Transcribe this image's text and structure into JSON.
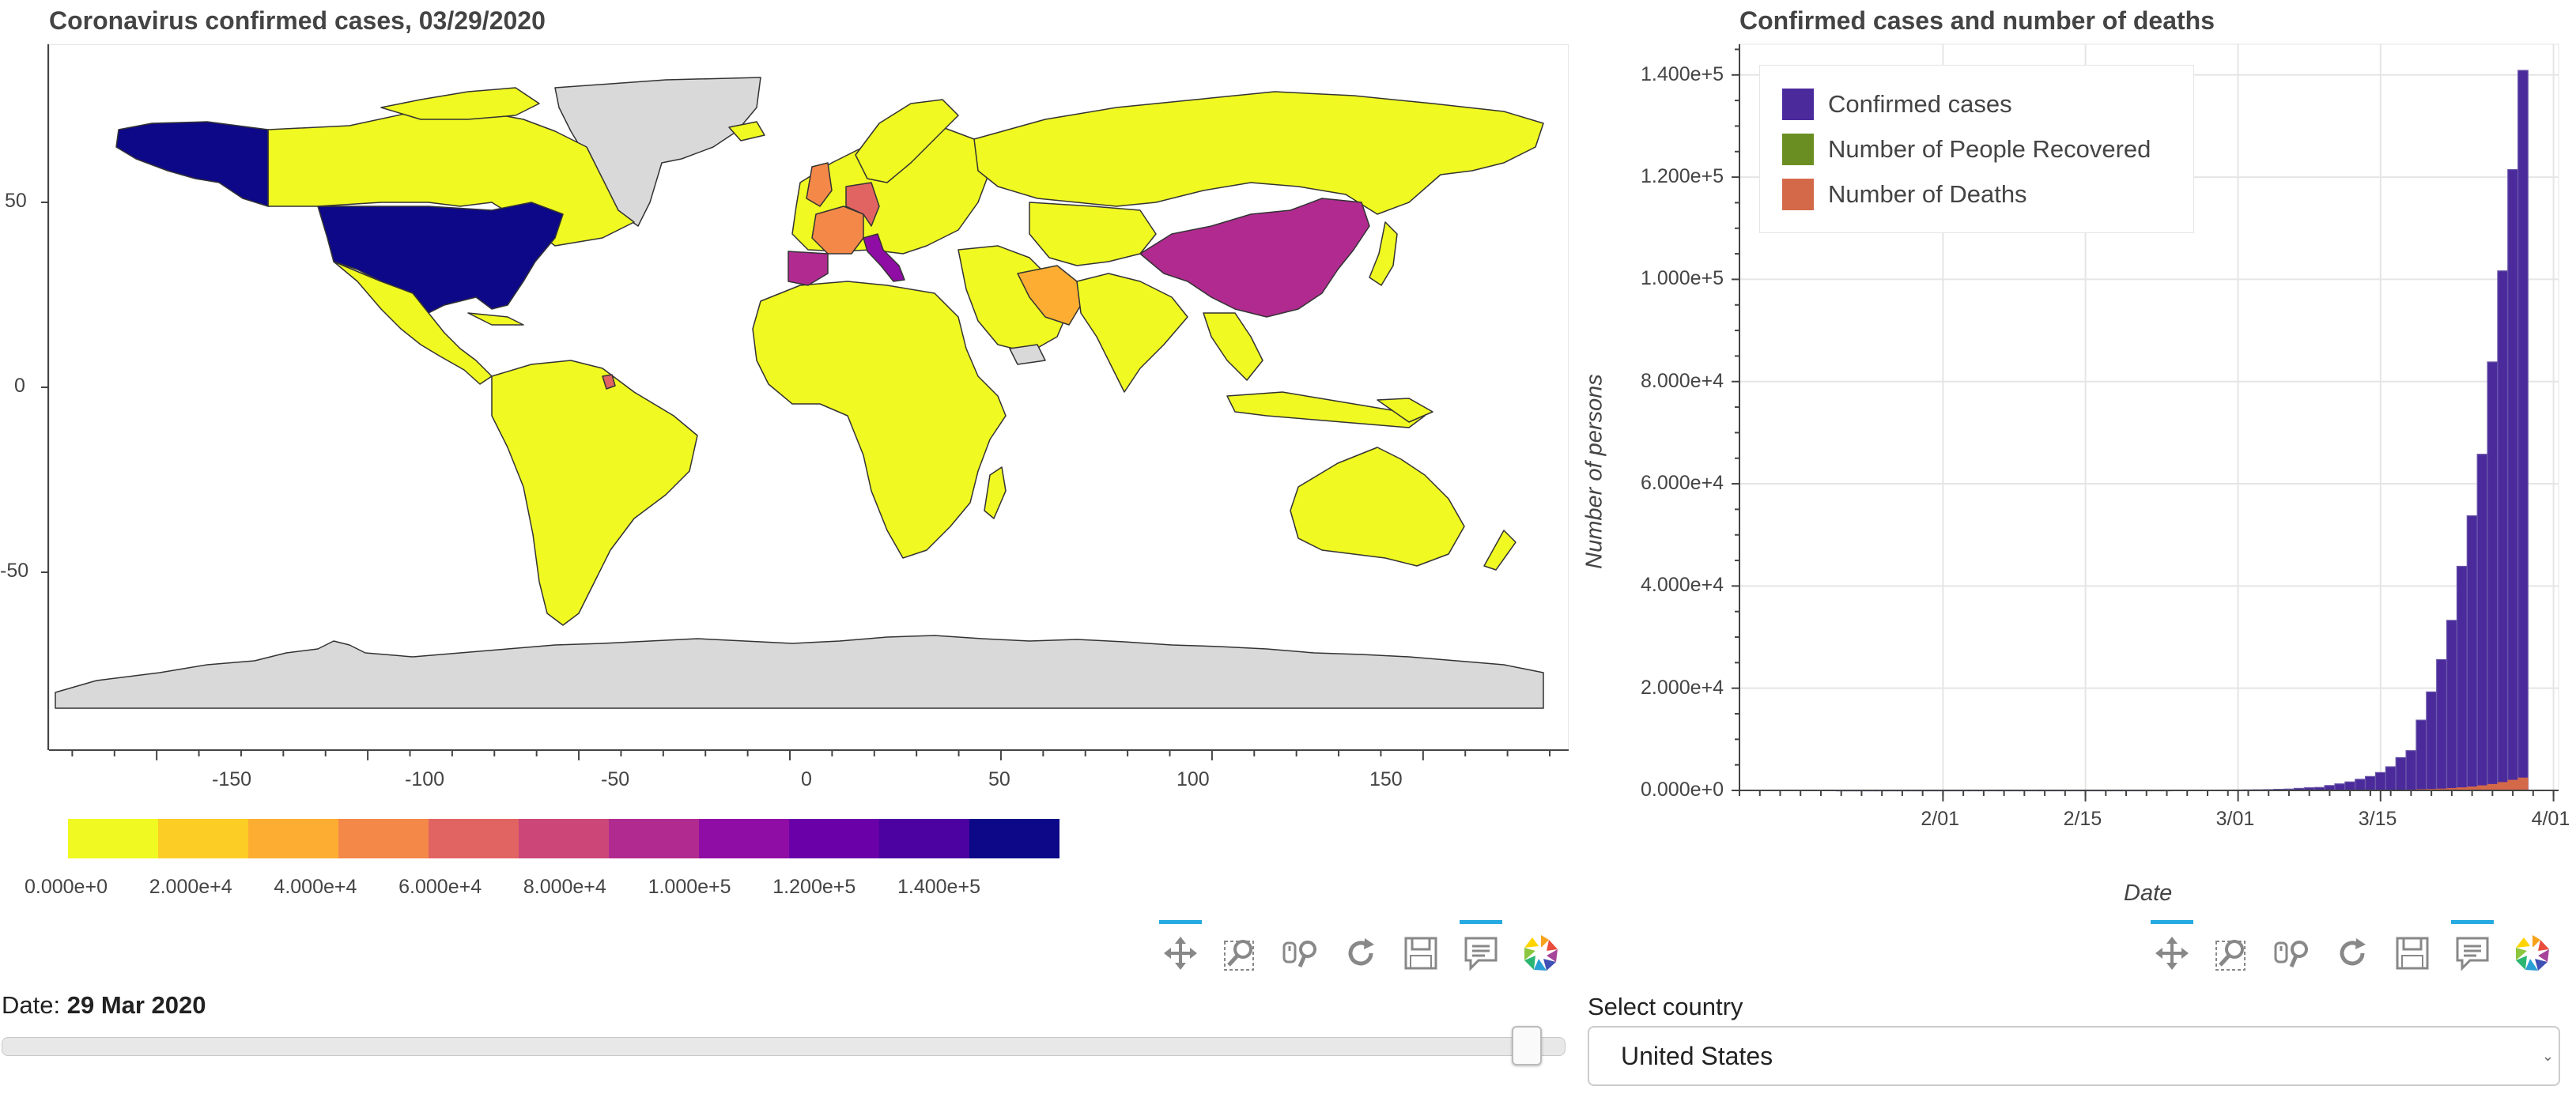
{
  "map_panel": {
    "title": "Coronavirus confirmed cases, 03/29/2020",
    "x_ticks": [
      "-150",
      "-100",
      "-50",
      "0",
      "50",
      "100",
      "150"
    ],
    "y_ticks": [
      "50",
      "0",
      "-50"
    ],
    "colorbar": {
      "colors": [
        "#f0f921",
        "#fccd25",
        "#fdae32",
        "#f48849",
        "#e16462",
        "#cc4778",
        "#b12a90",
        "#8f0da4",
        "#6a00a8",
        "#4c02a1",
        "#0d0887"
      ],
      "labels": [
        "0.000e+0",
        "2.000e+4",
        "4.000e+4",
        "6.000e+4",
        "8.000e+4",
        "1.000e+5",
        "1.200e+5",
        "1.400e+5"
      ]
    }
  },
  "chart_panel": {
    "title": "Confirmed cases and number of deaths",
    "xlabel": "Date",
    "ylabel": "Number of persons",
    "y_ticks": [
      "0.000e+0",
      "2.000e+4",
      "4.000e+4",
      "6.000e+4",
      "8.000e+4",
      "1.000e+5",
      "1.200e+5",
      "1.400e+5"
    ],
    "x_ticks": [
      "2/01",
      "2/15",
      "3/01",
      "3/15",
      "4/01"
    ],
    "legend": [
      "Confirmed cases",
      "Number of People Recovered",
      "Number of Deaths"
    ]
  },
  "colors": {
    "confirmed": "#4b2a9c",
    "recovered": "#6b8e23",
    "deaths": "#d4694a",
    "unknown_country": "#d9d9d9",
    "toolbar_active": "#26aae1"
  },
  "toolbar_icons": [
    "pan-icon",
    "box-zoom-icon",
    "wheel-zoom-icon",
    "reset-icon",
    "save-icon",
    "hover-icon",
    "bokeh-logo-icon"
  ],
  "date_control": {
    "label": "Date: ",
    "value": "29 Mar 2020",
    "slider_fraction": 1.0
  },
  "country_control": {
    "label": "Select country",
    "value": "United States"
  },
  "chart_data": {
    "type": "bar",
    "x": [
      "2020-01-22",
      "2020-01-23",
      "2020-01-24",
      "2020-01-25",
      "2020-01-26",
      "2020-01-27",
      "2020-01-28",
      "2020-01-29",
      "2020-01-30",
      "2020-01-31",
      "2020-02-01",
      "2020-02-02",
      "2020-02-03",
      "2020-02-04",
      "2020-02-05",
      "2020-02-06",
      "2020-02-07",
      "2020-02-08",
      "2020-02-09",
      "2020-02-10",
      "2020-02-11",
      "2020-02-12",
      "2020-02-13",
      "2020-02-14",
      "2020-02-15",
      "2020-02-16",
      "2020-02-17",
      "2020-02-18",
      "2020-02-19",
      "2020-02-20",
      "2020-02-21",
      "2020-02-22",
      "2020-02-23",
      "2020-02-24",
      "2020-02-25",
      "2020-02-26",
      "2020-02-27",
      "2020-02-28",
      "2020-02-29",
      "2020-03-01",
      "2020-03-02",
      "2020-03-03",
      "2020-03-04",
      "2020-03-05",
      "2020-03-06",
      "2020-03-07",
      "2020-03-08",
      "2020-03-09",
      "2020-03-10",
      "2020-03-11",
      "2020-03-12",
      "2020-03-13",
      "2020-03-14",
      "2020-03-15",
      "2020-03-16",
      "2020-03-17",
      "2020-03-18",
      "2020-03-19",
      "2020-03-20",
      "2020-03-21",
      "2020-03-22",
      "2020-03-23",
      "2020-03-24",
      "2020-03-25",
      "2020-03-26",
      "2020-03-27",
      "2020-03-28",
      "2020-03-29"
    ],
    "series": [
      {
        "name": "Confirmed cases",
        "values": [
          1,
          1,
          2,
          2,
          5,
          5,
          5,
          5,
          5,
          7,
          8,
          8,
          11,
          11,
          11,
          11,
          11,
          11,
          11,
          11,
          12,
          12,
          13,
          13,
          13,
          13,
          13,
          13,
          13,
          13,
          15,
          15,
          15,
          51,
          51,
          57,
          58,
          60,
          68,
          74,
          98,
          118,
          149,
          217,
          262,
          402,
          518,
          583,
          959,
          1281,
          1663,
          2179,
          2727,
          3499,
          4632,
          6421,
          7783,
          13747,
          19273,
          25600,
          33276,
          43847,
          53740,
          65778,
          83836,
          101657,
          121478,
          140886
        ]
      },
      {
        "name": "Number of People Recovered",
        "values": [
          0,
          0,
          0,
          0,
          0,
          0,
          0,
          0,
          0,
          0,
          0,
          0,
          0,
          0,
          0,
          0,
          0,
          0,
          0,
          0,
          0,
          0,
          0,
          0,
          0,
          0,
          0,
          0,
          0,
          0,
          0,
          0,
          0,
          0,
          0,
          0,
          0,
          0,
          0,
          0,
          0,
          0,
          0,
          0,
          0,
          0,
          0,
          0,
          0,
          0,
          0,
          0,
          0,
          0,
          0,
          0,
          0,
          0,
          0,
          0,
          0,
          0,
          0,
          0,
          0,
          0,
          0,
          0
        ]
      },
      {
        "name": "Number of Deaths",
        "values": [
          0,
          0,
          0,
          0,
          0,
          0,
          0,
          0,
          0,
          0,
          0,
          0,
          0,
          0,
          0,
          0,
          0,
          0,
          0,
          0,
          0,
          0,
          0,
          0,
          0,
          0,
          0,
          0,
          0,
          0,
          0,
          0,
          0,
          0,
          0,
          0,
          0,
          0,
          1,
          1,
          6,
          7,
          11,
          12,
          14,
          17,
          21,
          22,
          28,
          36,
          40,
          47,
          54,
          63,
          85,
          108,
          118,
          200,
          244,
          307,
          427,
          552,
          706,
          942,
          1209,
          1581,
          2026,
          2467
        ]
      }
    ],
    "ylim": [
      0,
      146000
    ],
    "grid": true,
    "legend_position": "top-left"
  }
}
